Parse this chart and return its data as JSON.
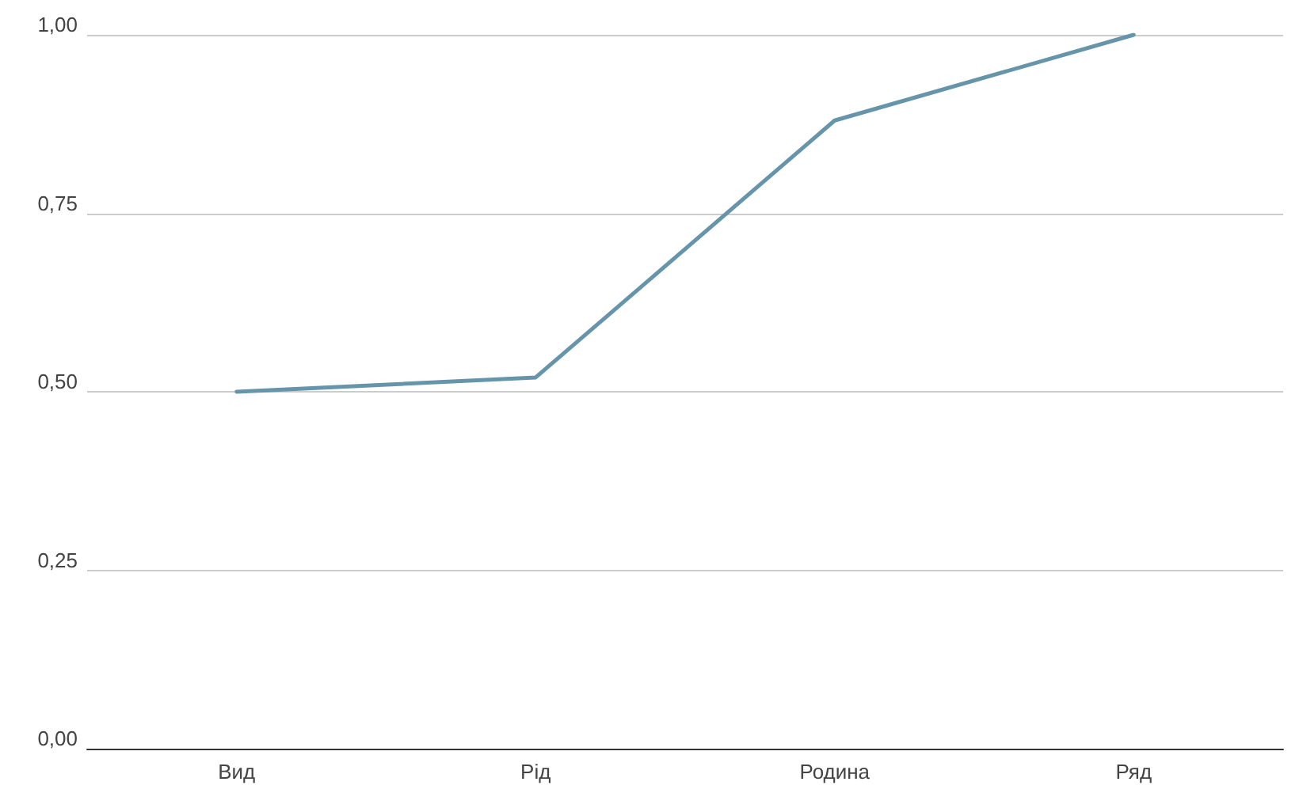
{
  "chart_data": {
    "type": "line",
    "categories": [
      "Вид",
      "Рід",
      "Родина",
      "Ряд"
    ],
    "series": [
      {
        "color": "#6695ab",
        "values": [
          0.5,
          0.52,
          0.88,
          1.0
        ]
      }
    ],
    "ylim": [
      0,
      1
    ],
    "yticks": [
      {
        "value": 0,
        "label": "0,00"
      },
      {
        "value": 0.25,
        "label": "0,25"
      },
      {
        "value": 0.5,
        "label": "0,50"
      },
      {
        "value": 0.75,
        "label": "0,75"
      },
      {
        "value": 1,
        "label": "1,00"
      }
    ],
    "grid": "y",
    "marker": "none",
    "line_style": "solid"
  }
}
